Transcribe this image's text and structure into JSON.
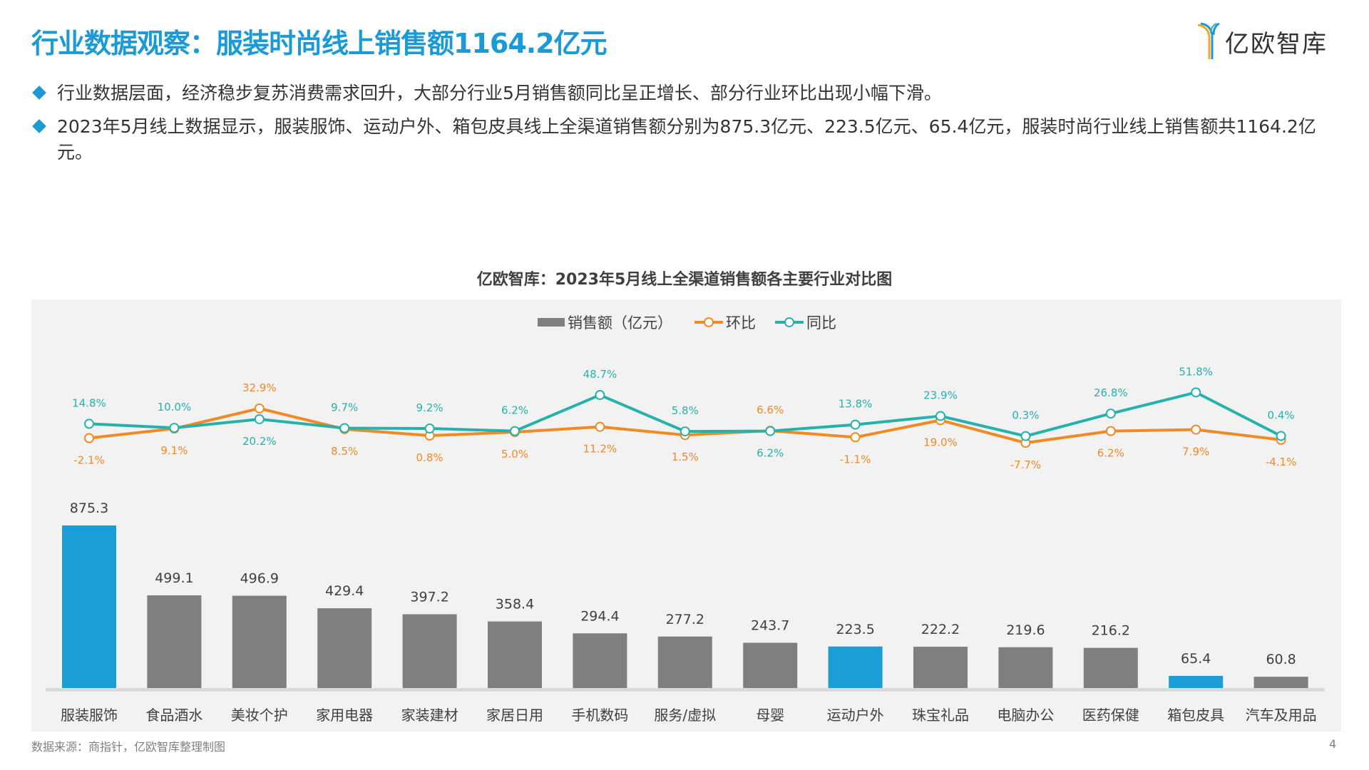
{
  "header": {
    "title": "行业数据观察：服装时尚线上销售额1164.2亿元",
    "logo_text": "亿欧智库"
  },
  "bullets": [
    "行业数据层面，经济稳步复苏消费需求回升，大部分行业5月销售额同比呈正增长、部分行业环比出现小幅下滑。",
    "2023年5月线上数据显示，服装服饰、运动户外、箱包皮具线上全渠道销售额分别为875.3亿元、223.5亿元、65.4亿元，服装时尚行业线上销售额共1164.2亿元。"
  ],
  "chart_data": {
    "type": "bar+line",
    "title": "亿欧智库：2023年5月线上全渠道销售额各主要行业对比图",
    "categories": [
      "服装服饰",
      "食品酒水",
      "美妆个护",
      "家用电器",
      "家装建材",
      "家居日用",
      "手机数码",
      "服务/虚拟",
      "母婴",
      "运动户外",
      "珠宝礼品",
      "电脑办公",
      "医药保健",
      "箱包皮具",
      "汽车及用品"
    ],
    "legend_position": "top",
    "grid": false,
    "series": [
      {
        "name": "销售额（亿元）",
        "type": "bar",
        "color": "#7f7f7f",
        "highlight_color": "#1b9ed6",
        "highlighted": [
          "服装服饰",
          "运动户外",
          "箱包皮具"
        ],
        "values": [
          875.3,
          499.1,
          496.9,
          429.4,
          397.2,
          358.4,
          294.4,
          277.2,
          243.7,
          223.5,
          222.2,
          219.6,
          216.2,
          65.4,
          60.8
        ],
        "labels": [
          "875.3",
          "499.1",
          "496.9",
          "429.4",
          "397.2",
          "358.4",
          "294.4",
          "277.2",
          "243.7",
          "223.5",
          "222.2",
          "219.6",
          "216.2",
          "65.4",
          "60.8"
        ]
      },
      {
        "name": "环比",
        "type": "line",
        "color": "#f08a24",
        "values": [
          -2.1,
          9.1,
          32.9,
          8.5,
          0.8,
          5.0,
          11.2,
          1.5,
          6.6,
          -1.1,
          19.0,
          -7.7,
          6.2,
          7.9,
          -4.1
        ],
        "labels": [
          "-2.1%",
          "9.1%",
          "32.9%",
          "8.5%",
          "0.8%",
          "5.0%",
          "11.2%",
          "1.5%",
          "6.6%",
          "-1.1%",
          "19.0%",
          "-7.7%",
          "6.2%",
          "7.9%",
          "-4.1%"
        ]
      },
      {
        "name": "同比",
        "type": "line",
        "color": "#26b2ac",
        "values": [
          14.8,
          10.0,
          20.2,
          9.7,
          9.2,
          6.2,
          48.7,
          5.8,
          6.2,
          13.8,
          23.9,
          0.3,
          26.8,
          51.8,
          0.4
        ],
        "labels": [
          "14.8%",
          "10.0%",
          "20.2%",
          "9.7%",
          "9.2%",
          "6.2%",
          "48.7%",
          "5.8%",
          "6.2%",
          "13.8%",
          "23.9%",
          "0.3%",
          "26.8%",
          "51.8%",
          "0.4%"
        ]
      }
    ]
  },
  "footer": {
    "source": "数据来源：商指针，亿欧智库整理制图",
    "page_number": "4"
  }
}
